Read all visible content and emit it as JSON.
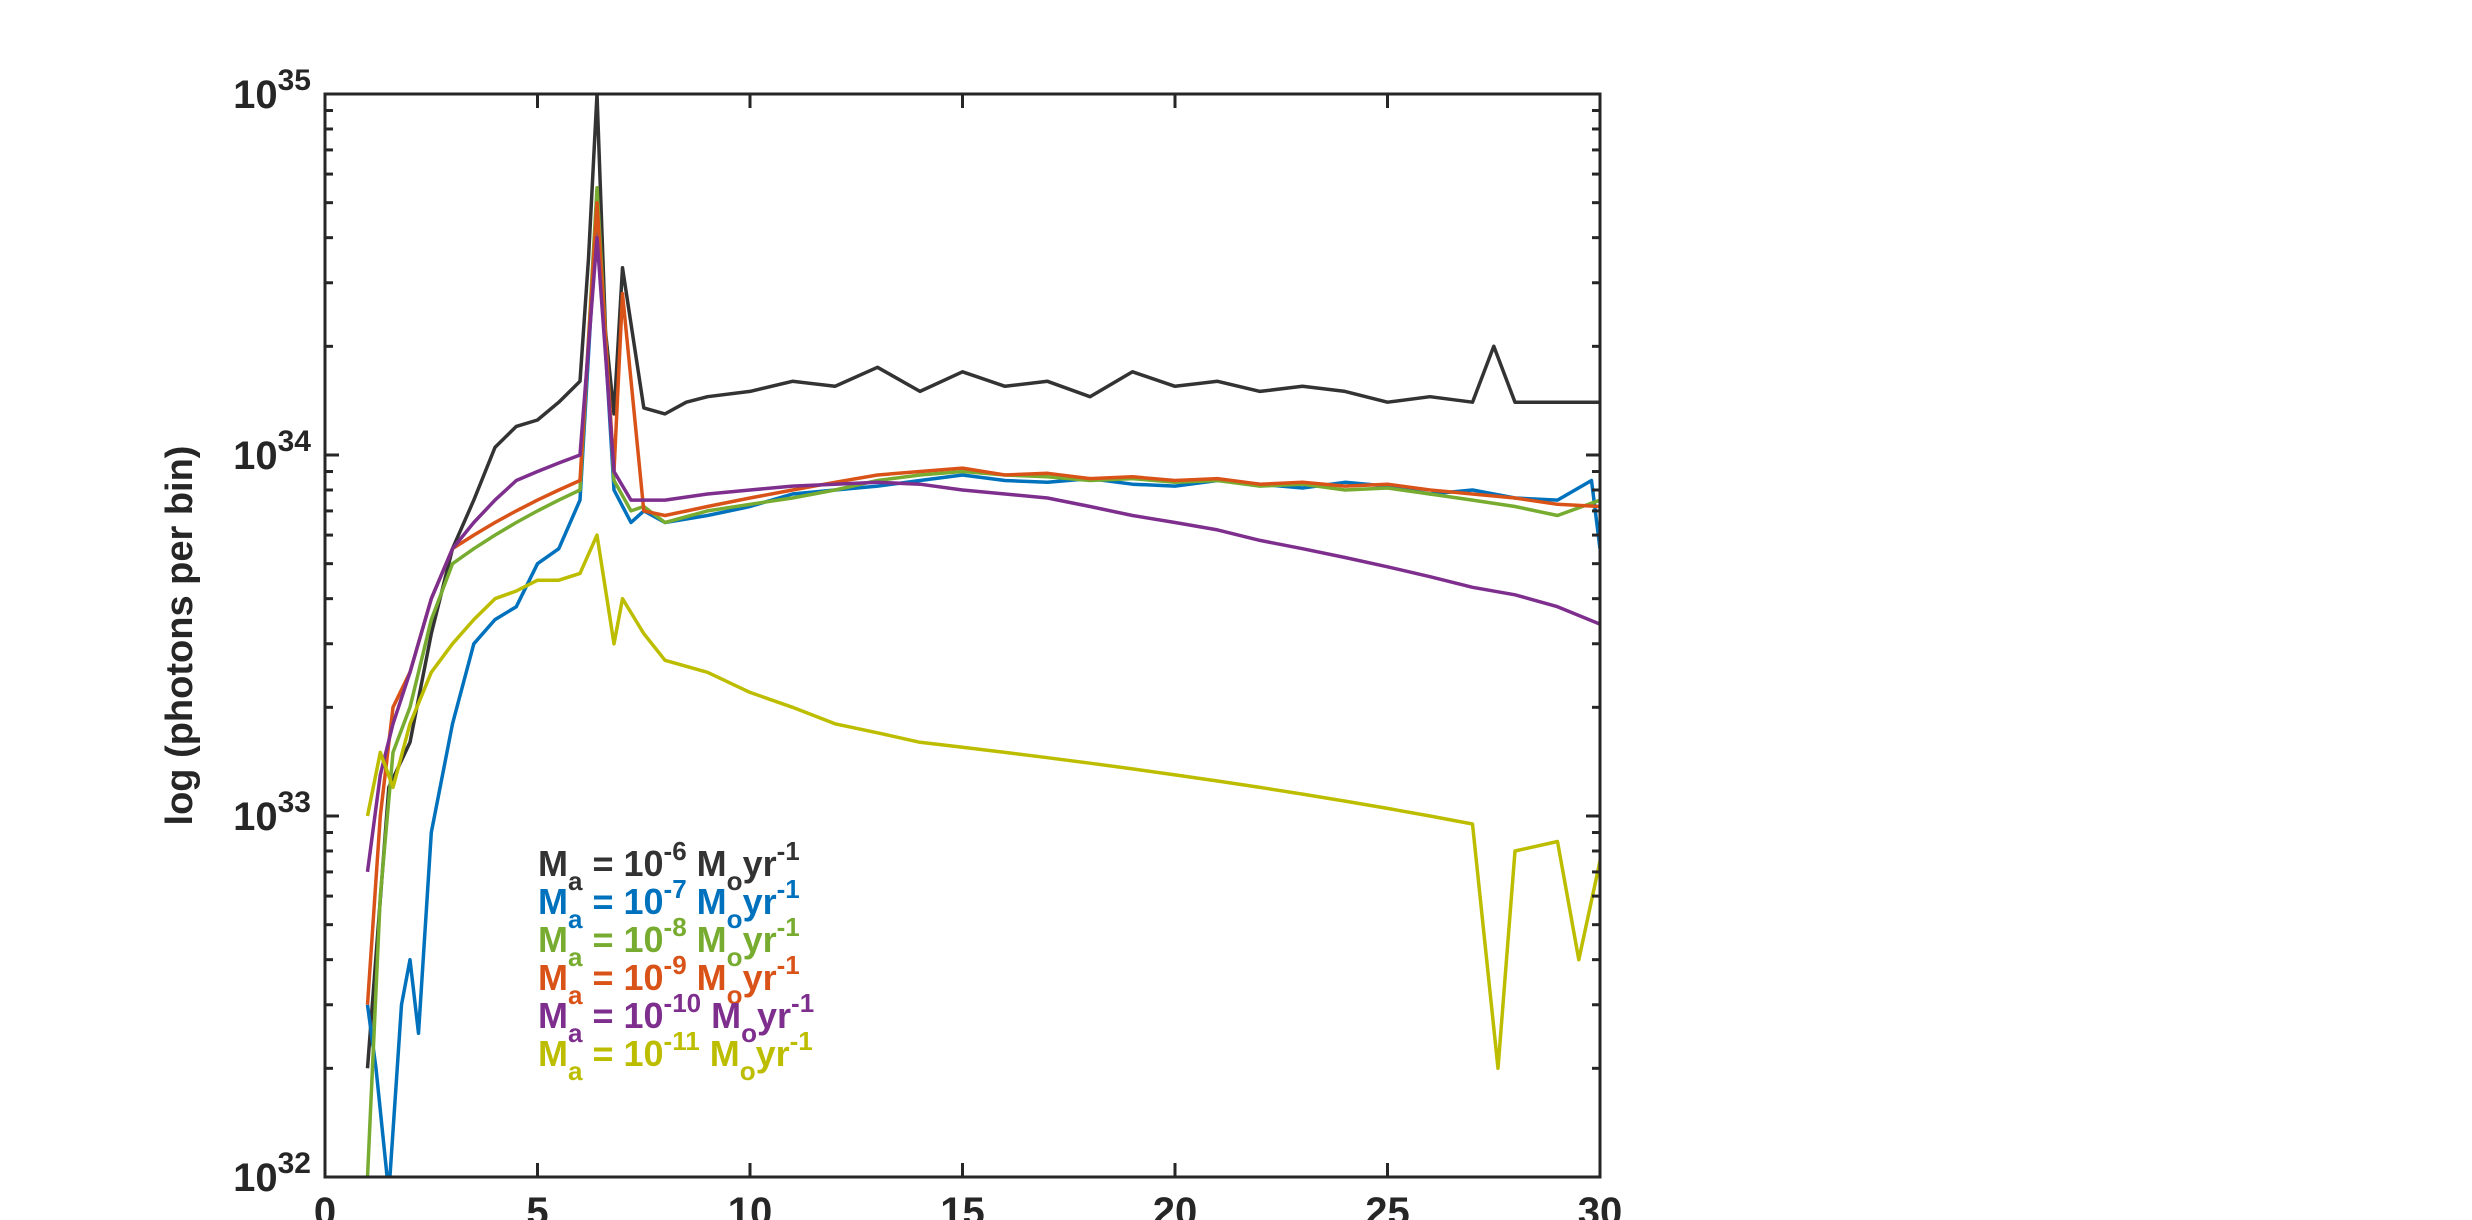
{
  "chart_data": {
    "type": "line",
    "ylabel": "log (photons per bin)",
    "xlabel": "",
    "xlim": [
      0,
      30
    ],
    "ylim": [
      1e+32,
      1e+35
    ],
    "y_scale": "log",
    "x_ticks": [
      {
        "value": 0,
        "label": "0"
      },
      {
        "value": 5,
        "label": "5"
      },
      {
        "value": 10,
        "label": "10"
      },
      {
        "value": 15,
        "label": "15"
      },
      {
        "value": 20,
        "label": "20"
      },
      {
        "value": 25,
        "label": "25"
      },
      {
        "value": 30,
        "label": "30"
      }
    ],
    "y_ticks": [
      {
        "value": 1e+32,
        "base": "10",
        "exp": "32"
      },
      {
        "value": 1e+33,
        "base": "10",
        "exp": "33"
      },
      {
        "value": 1e+34,
        "base": "10",
        "exp": "34"
      },
      {
        "value": 1e+35,
        "base": "10",
        "exp": "35"
      }
    ],
    "grid": false,
    "legend_position": "lower-left",
    "legend": [
      {
        "name": "M",
        "sub": "a",
        "eq": " = 10",
        "exp": "-6",
        "unit": " M",
        "unit_sub": "o",
        "unit2": "yr",
        "unit2_exp": "-1",
        "color": "#333333"
      },
      {
        "name": "M",
        "sub": "a",
        "eq": " = 10",
        "exp": "-7",
        "unit": " M",
        "unit_sub": "o",
        "unit2": "yr",
        "unit2_exp": "-1",
        "color": "#0072bd"
      },
      {
        "name": "M",
        "sub": "a",
        "eq": " = 10",
        "exp": "-8",
        "unit": " M",
        "unit_sub": "o",
        "unit2": "yr",
        "unit2_exp": "-1",
        "color": "#77ac30"
      },
      {
        "name": "M",
        "sub": "a",
        "eq": " = 10",
        "exp": "-9",
        "unit": " M",
        "unit_sub": "o",
        "unit2": "yr",
        "unit2_exp": "-1",
        "color": "#d95319"
      },
      {
        "name": "M",
        "sub": "a",
        "eq": " = 10",
        "exp": "-10",
        "unit": " M",
        "unit_sub": "o",
        "unit2": "yr",
        "unit2_exp": "-1",
        "color": "#7e2f8e"
      },
      {
        "name": "M",
        "sub": "a",
        "eq": " = 10",
        "exp": "-11",
        "unit": " M",
        "unit_sub": "o",
        "unit2": "yr",
        "unit2_exp": "-1",
        "color": "#bdbd00"
      }
    ],
    "series": [
      {
        "color": "#333333",
        "x": [
          1,
          1.5,
          2,
          2.5,
          3,
          3.5,
          4,
          4.5,
          5,
          5.5,
          6,
          6.2,
          6.4,
          6.6,
          6.8,
          7,
          7.5,
          8,
          8.5,
          9,
          10,
          11,
          12,
          13,
          14,
          15,
          16,
          17,
          18,
          19,
          20,
          21,
          22,
          23,
          24,
          25,
          26,
          27,
          27.5,
          28,
          29,
          30
        ],
        "y": [
          2e+32,
          1.2e+33,
          1.6e+33,
          3.2e+33,
          5.5e+33,
          7.5e+33,
          1.05e+34,
          1.2e+34,
          1.25e+34,
          1.4e+34,
          1.6e+34,
          3.5e+34,
          1e+35,
          2.2e+34,
          1.3e+34,
          3.3e+34,
          1.35e+34,
          1.3e+34,
          1.4e+34,
          1.45e+34,
          1.5e+34,
          1.6e+34,
          1.55e+34,
          1.75e+34,
          1.5e+34,
          1.7e+34,
          1.55e+34,
          1.6e+34,
          1.45e+34,
          1.7e+34,
          1.55e+34,
          1.6e+34,
          1.5e+34,
          1.55e+34,
          1.5e+34,
          1.4e+34,
          1.45e+34,
          1.4e+34,
          2e+34,
          1.4e+34,
          1.4e+34,
          1.4e+34
        ]
      },
      {
        "color": "#0072bd",
        "x": [
          1,
          1.2,
          1.5,
          1.8,
          2,
          2.2,
          2.5,
          3,
          3.5,
          4,
          4.5,
          5,
          5.5,
          6,
          6.4,
          6.8,
          7.2,
          7.5,
          8,
          9,
          10,
          11,
          12,
          13,
          14,
          15,
          16,
          17,
          18,
          19,
          20,
          21,
          22,
          23,
          24,
          25,
          26,
          27,
          28,
          29,
          29.8,
          30
        ],
        "y": [
          3e+32,
          2e+32,
          8e+31,
          3e+32,
          4e+32,
          2.5e+32,
          9e+32,
          1.8e+33,
          3e+33,
          3.5e+33,
          3.8e+33,
          5e+33,
          5.5e+33,
          7.5e+33,
          4.8e+34,
          8e+33,
          6.5e+33,
          7e+33,
          6.5e+33,
          6.8e+33,
          7.2e+33,
          7.8e+33,
          8e+33,
          8.2e+33,
          8.5e+33,
          8.8e+33,
          8.5e+33,
          8.4e+33,
          8.6e+33,
          8.3e+33,
          8.2e+33,
          8.5e+33,
          8.3e+33,
          8.1e+33,
          8.4e+33,
          8.2e+33,
          7.8e+33,
          8e+33,
          7.6e+33,
          7.5e+33,
          8.5e+33,
          5.5e+33
        ]
      },
      {
        "color": "#77ac30",
        "x": [
          1,
          1.3,
          1.6,
          2,
          2.5,
          3,
          3.5,
          4,
          4.5,
          5,
          5.5,
          6,
          6.4,
          6.8,
          7.2,
          7.5,
          8,
          9,
          10,
          11,
          12,
          13,
          14,
          15,
          16,
          17,
          18,
          19,
          20,
          21,
          22,
          23,
          24,
          25,
          26,
          27,
          28,
          29,
          30
        ],
        "y": [
          1e+32,
          6e+32,
          1.5e+33,
          2e+33,
          3.5e+33,
          5e+33,
          5.5e+33,
          6e+33,
          6.5e+33,
          7e+33,
          7.5e+33,
          8e+33,
          5.5e+34,
          8.5e+33,
          7e+33,
          7.2e+33,
          6.5e+33,
          7e+33,
          7.3e+33,
          7.6e+33,
          8e+33,
          8.5e+33,
          8.8e+33,
          9e+33,
          8.8e+33,
          8.7e+33,
          8.5e+33,
          8.6e+33,
          8.4e+33,
          8.5e+33,
          8.2e+33,
          8.3e+33,
          8e+33,
          8.1e+33,
          7.8e+33,
          7.5e+33,
          7.2e+33,
          6.8e+33,
          7.5e+33
        ]
      },
      {
        "color": "#d95319",
        "x": [
          1,
          1.3,
          1.6,
          2,
          2.5,
          3,
          3.5,
          4,
          4.5,
          5,
          5.5,
          6,
          6.4,
          6.8,
          7,
          7.5,
          8,
          9,
          10,
          11,
          12,
          13,
          14,
          15,
          16,
          17,
          18,
          19,
          20,
          21,
          22,
          23,
          24,
          25,
          26,
          27,
          28,
          29,
          30
        ],
        "y": [
          3e+32,
          1e+33,
          2e+33,
          2.5e+33,
          4e+33,
          5.5e+33,
          6e+33,
          6.5e+33,
          7e+33,
          7.5e+33,
          8e+33,
          8.5e+33,
          5e+34,
          9e+33,
          2.8e+34,
          7e+33,
          6.8e+33,
          7.2e+33,
          7.6e+33,
          8e+33,
          8.4e+33,
          8.8e+33,
          9e+33,
          9.2e+33,
          8.8e+33,
          8.9e+33,
          8.6e+33,
          8.7e+33,
          8.5e+33,
          8.6e+33,
          8.3e+33,
          8.4e+33,
          8.2e+33,
          8.3e+33,
          8e+33,
          7.8e+33,
          7.6e+33,
          7.3e+33,
          7.2e+33
        ]
      },
      {
        "color": "#7e2f8e",
        "x": [
          1,
          1.3,
          1.6,
          2,
          2.5,
          3,
          3.5,
          4,
          4.5,
          5,
          5.5,
          6,
          6.4,
          6.8,
          7.2,
          8,
          9,
          10,
          11,
          12,
          13,
          14,
          15,
          16,
          17,
          18,
          19,
          20,
          21,
          22,
          23,
          24,
          25,
          26,
          27,
          28,
          29,
          30
        ],
        "y": [
          7e+32,
          1.3e+33,
          1.8e+33,
          2.5e+33,
          4e+33,
          5.5e+33,
          6.5e+33,
          7.5e+33,
          8.5e+33,
          9e+33,
          9.5e+33,
          1e+34,
          4e+34,
          9e+33,
          7.5e+33,
          7.5e+33,
          7.8e+33,
          8e+33,
          8.2e+33,
          8.3e+33,
          8.4e+33,
          8.3e+33,
          8e+33,
          7.8e+33,
          7.6e+33,
          7.2e+33,
          6.8e+33,
          6.5e+33,
          6.2e+33,
          5.8e+33,
          5.5e+33,
          5.2e+33,
          4.9e+33,
          4.6e+33,
          4.3e+33,
          4.1e+33,
          3.8e+33,
          3.4e+33
        ]
      },
      {
        "color": "#bdbd00",
        "x": [
          1,
          1.3,
          1.6,
          2,
          2.5,
          3,
          3.5,
          4,
          4.5,
          5,
          5.5,
          6,
          6.4,
          6.8,
          7,
          7.5,
          8,
          9,
          10,
          11,
          12,
          13,
          14,
          15,
          16,
          17,
          18,
          19,
          20,
          21,
          22,
          23,
          24,
          25,
          26,
          27,
          27.6,
          28,
          29,
          29.5,
          30
        ],
        "y": [
          1e+33,
          1.5e+33,
          1.2e+33,
          1.8e+33,
          2.5e+33,
          3e+33,
          3.5e+33,
          4e+33,
          4.2e+33,
          4.5e+33,
          4.5e+33,
          4.7e+33,
          6e+33,
          3e+33,
          4e+33,
          3.2e+33,
          2.7e+33,
          2.5e+33,
          2.2e+33,
          2e+33,
          1.8e+33,
          1.7e+33,
          1.6e+33,
          1.55e+33,
          1.5e+33,
          1.45e+33,
          1.4e+33,
          1.35e+33,
          1.3e+33,
          1.25e+33,
          1.2e+33,
          1.15e+33,
          1.1e+33,
          1.05e+33,
          1e+33,
          9.5e+32,
          2e+32,
          8e+32,
          8.5e+32,
          4e+32,
          7.5e+32
        ]
      }
    ]
  }
}
